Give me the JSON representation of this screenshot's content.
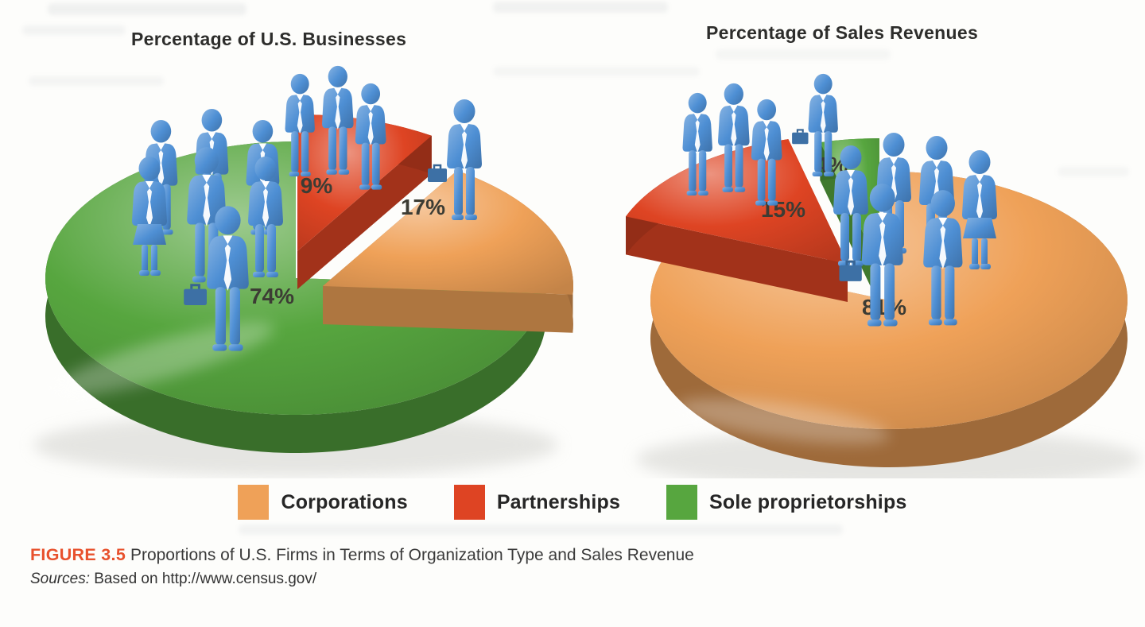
{
  "figure": {
    "caption_label": "FIGURE 3.5",
    "caption_text": "Proportions of U.S. Firms in Terms of Organization Type and Sales Revenue",
    "sources_label": "Sources:",
    "sources_text": " Based on http://www.census.gov/"
  },
  "legend": [
    {
      "label": "Corporations",
      "color": "#EFA158"
    },
    {
      "label": "Partnerships",
      "color": "#DE4423"
    },
    {
      "label": "Sole proprietorships",
      "color": "#57A63F"
    }
  ],
  "colors": {
    "corporations_orange": "#EFA158",
    "partnerships_red": "#DE4423",
    "sole_proprietorships_green": "#57A63F",
    "businessperson_blue": "#4E8FD4",
    "caption_red": "#E8512D",
    "percent_label": "#3C3C34"
  },
  "chart_data": [
    {
      "type": "pie",
      "style": "3d-exploded",
      "title": "Percentage of U.S. Businesses",
      "unit": "percent",
      "slices": [
        {
          "label": "Partnerships",
          "value": 9,
          "display": "9%",
          "color": "#DE4423"
        },
        {
          "label": "Corporations",
          "value": 17,
          "display": "17%",
          "color": "#EFA158"
        },
        {
          "label": "Sole proprietorships",
          "value": 74,
          "display": "74%",
          "color": "#57A63F"
        }
      ],
      "figure_icons": [
        {
          "slice": "Sole proprietorships",
          "businesspeople": 7
        },
        {
          "slice": "Partnerships",
          "businesspeople": 3
        },
        {
          "slice": "Corporations",
          "businesspeople": 1
        }
      ]
    },
    {
      "type": "pie",
      "style": "3d-exploded",
      "title": "Percentage of Sales Revenues",
      "unit": "percent",
      "slices": [
        {
          "label": "Corporations",
          "value": 81,
          "display": "81%",
          "color": "#EFA158"
        },
        {
          "label": "Partnerships",
          "value": 15,
          "display": "15%",
          "color": "#DE4423"
        },
        {
          "label": "Sole proprietorships",
          "value": 4,
          "display": "4%",
          "color": "#57A63F"
        }
      ],
      "figure_icons": [
        {
          "slice": "Corporations",
          "businesspeople": 6
        },
        {
          "slice": "Partnerships",
          "businesspeople": 3
        },
        {
          "slice": "Sole proprietorships",
          "businesspeople": 1
        }
      ]
    }
  ]
}
